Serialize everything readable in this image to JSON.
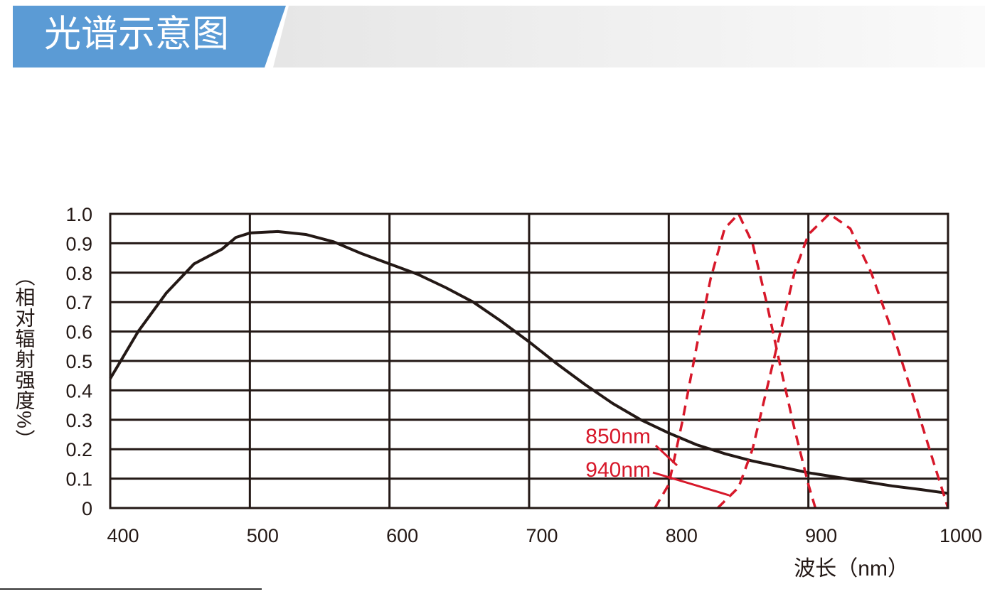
{
  "header": {
    "title": "光谱示意图"
  },
  "chart_data": {
    "type": "line",
    "y_label": "（相对辐射强度%）",
    "x_label": "波长（nm）",
    "xlim": [
      400,
      1000
    ],
    "ylim": [
      0,
      1
    ],
    "xticks": [
      400,
      500,
      600,
      700,
      800,
      900,
      1000
    ],
    "yticks": [
      {
        "value": 1,
        "label": "1.0"
      },
      0.9,
      0.8,
      0.7,
      0.6,
      0.5,
      0.4,
      0.3,
      0.2,
      0.1,
      0
    ],
    "grid": true,
    "series": [
      {
        "color": "#231815",
        "dashed": false,
        "x": [
          400,
          420,
          440,
          460,
          480,
          490,
          500,
          520,
          540,
          560,
          580,
          600,
          620,
          640,
          660,
          680,
          700,
          720,
          740,
          760,
          780,
          800,
          820,
          840,
          860,
          880,
          900,
          920,
          940,
          960,
          980,
          1000
        ],
        "values": [
          0.44,
          0.6,
          0.73,
          0.83,
          0.88,
          0.92,
          0.935,
          0.94,
          0.93,
          0.905,
          0.865,
          0.83,
          0.795,
          0.75,
          0.7,
          0.635,
          0.565,
          0.49,
          0.42,
          0.355,
          0.3,
          0.255,
          0.215,
          0.185,
          0.16,
          0.14,
          0.12,
          0.105,
          0.09,
          0.075,
          0.063,
          0.05
        ]
      },
      {
        "name": "850nm",
        "color": "#d7182a",
        "dashed": true,
        "x": [
          790,
          800,
          810,
          820,
          830,
          840,
          850,
          860,
          870,
          880,
          890,
          900,
          905
        ],
        "values": [
          0,
          0.08,
          0.3,
          0.55,
          0.78,
          0.95,
          1,
          0.9,
          0.7,
          0.48,
          0.27,
          0.08,
          0
        ]
      },
      {
        "name": "940nm",
        "color": "#d7182a",
        "dashed": true,
        "x": [
          835,
          850,
          860,
          870,
          880,
          890,
          900,
          915,
          930,
          945,
          960,
          975,
          990,
          1000
        ],
        "values": [
          0,
          0.07,
          0.2,
          0.4,
          0.6,
          0.8,
          0.93,
          1,
          0.95,
          0.8,
          0.6,
          0.38,
          0.15,
          0
        ]
      }
    ]
  }
}
